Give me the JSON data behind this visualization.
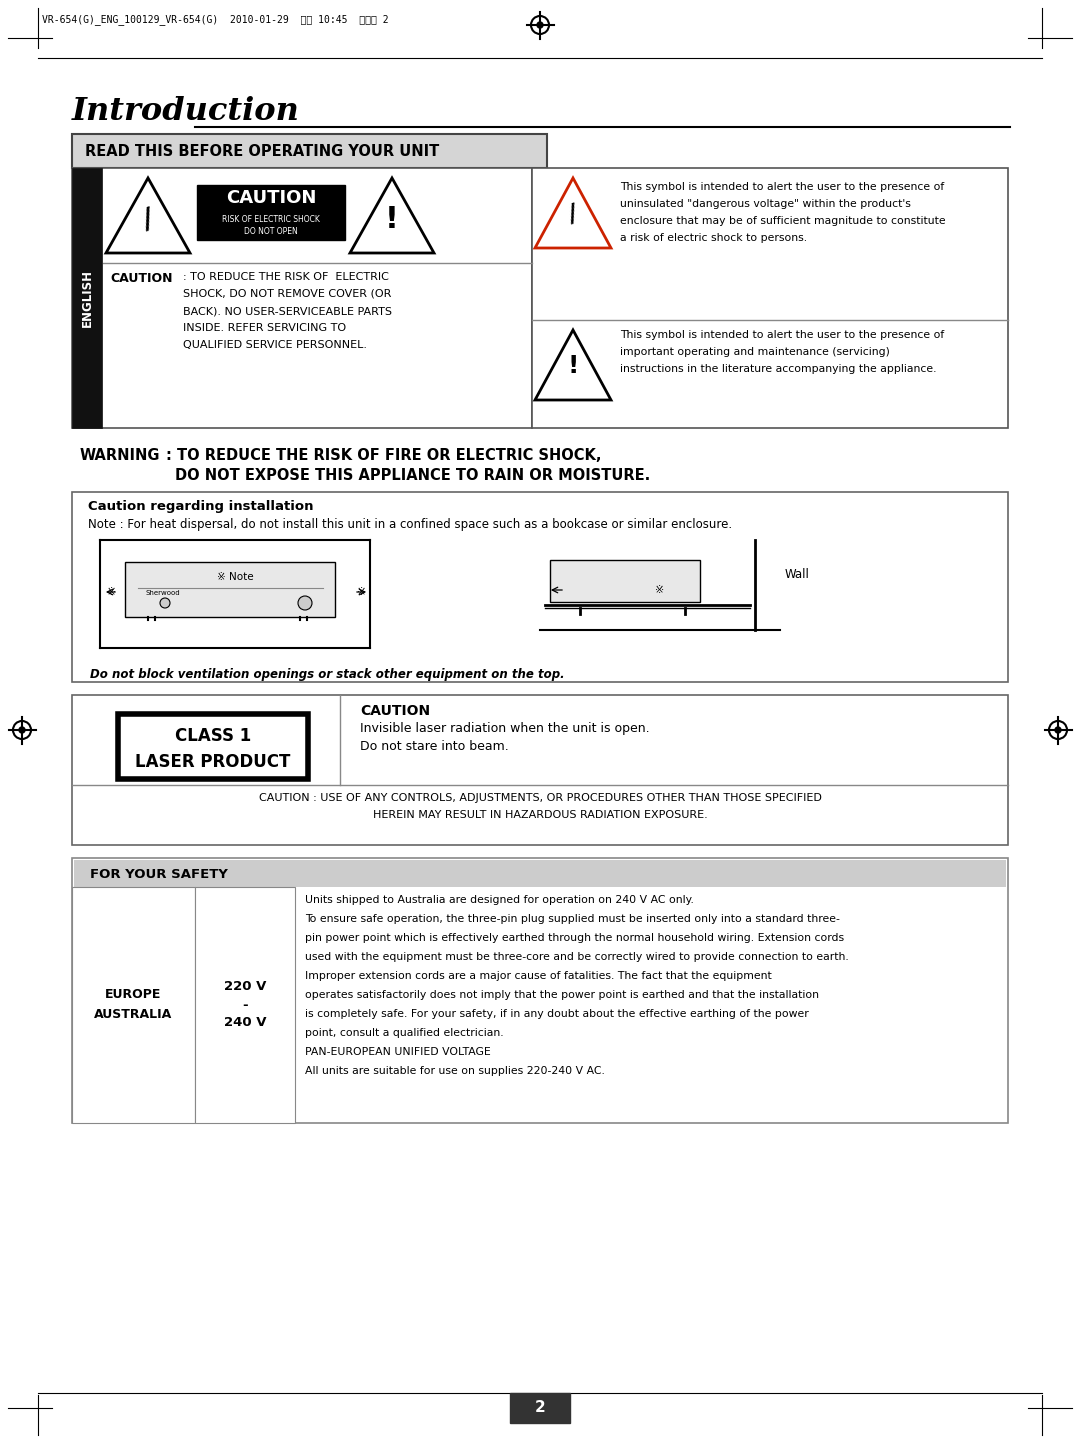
{
  "bg_color": "#ffffff",
  "title": "Introduction",
  "section1_header": "READ THIS BEFORE OPERATING YOUR UNIT",
  "caution_label": "CAUTION",
  "caution_body_lines": [
    ": TO REDUCE THE RISK OF  ELECTRIC",
    "SHOCK, DO NOT REMOVE COVER (OR",
    "BACK). NO USER-SERVICEABLE PARTS",
    "INSIDE. REFER SERVICING TO",
    "QUALIFIED SERVICE PERSONNEL."
  ],
  "caution_box_title": "CAUTION",
  "caution_box_sub1": "RISK OF ELECTRIC SHOCK",
  "caution_box_sub2": "DO NOT OPEN",
  "symbol_text1_lines": [
    "This symbol is intended to alert the user to the presence of",
    "uninsulated \"dangerous voltage\" within the product's",
    "enclosure that may be of sufficient magnitude to constitute",
    "a risk of electric shock to persons."
  ],
  "symbol_text2_lines": [
    "This symbol is intended to alert the user to the presence of",
    "important operating and maintenance (servicing)",
    "instructions in the literature accompanying the appliance."
  ],
  "warning_label": "WARNING",
  "warning_line1": ": TO REDUCE THE RISK OF FIRE OR ELECTRIC SHOCK,",
  "warning_line2": "DO NOT EXPOSE THIS APPLIANCE TO RAIN OR MOISTURE.",
  "installation_header": "Caution regarding installation",
  "installation_note": "Note : For heat dispersal, do not install this unit in a confined space such as a bookcase or similar enclosure.",
  "note_mark": "※ Note",
  "wall_label": "Wall",
  "installation_footer": "Do not block ventilation openings or stack other equipment on the top.",
  "class1_line1": "CLASS 1",
  "class1_line2": "LASER PRODUCT",
  "laser_caution_header": "CAUTION",
  "laser_caution_line1": "Invisible laser radiation when the unit is open.",
  "laser_caution_line2": "Do not stare into beam.",
  "laser_warning_line1": "CAUTION : USE OF ANY CONTROLS, ADJUSTMENTS, OR PROCEDURES OTHER THAN THOSE SPECIFIED",
  "laser_warning_line2": "HEREIN MAY RESULT IN HAZARDOUS RADIATION EXPOSURE.",
  "safety_header": "FOR YOUR SAFETY",
  "safety_col1_line1": "EUROPE",
  "safety_col1_line2": "AUSTRALIA",
  "safety_col2_line1": "220 V",
  "safety_col2_line2": "-",
  "safety_col2_line3": "240 V",
  "safety_text_lines": [
    "Units shipped to Australia are designed for operation on 240 V AC only.",
    "To ensure safe operation, the three-pin plug supplied must be inserted only into a standard three-",
    "pin power point which is effectively earthed through the normal household wiring. Extension cords",
    "used with the equipment must be three-core and be correctly wired to provide connection to earth.",
    "Improper extension cords are a major cause of fatalities. The fact that the equipment",
    "operates satisfactorily does not imply that the power point is earthed and that the installation",
    "is completely safe. For your safety, if in any doubt about the effective earthing of the power",
    "point, consult a qualified electrician.",
    "PAN-EUROPEAN UNIFIED VOLTAGE",
    "All units are suitable for use on supplies 220-240 V AC."
  ],
  "page_num": "2",
  "english_label": "ENGLISH",
  "header_text": "VR-654(G)_ENG_100129_VR-654(G)  2010-01-29  오전 10:45  페이지 2"
}
